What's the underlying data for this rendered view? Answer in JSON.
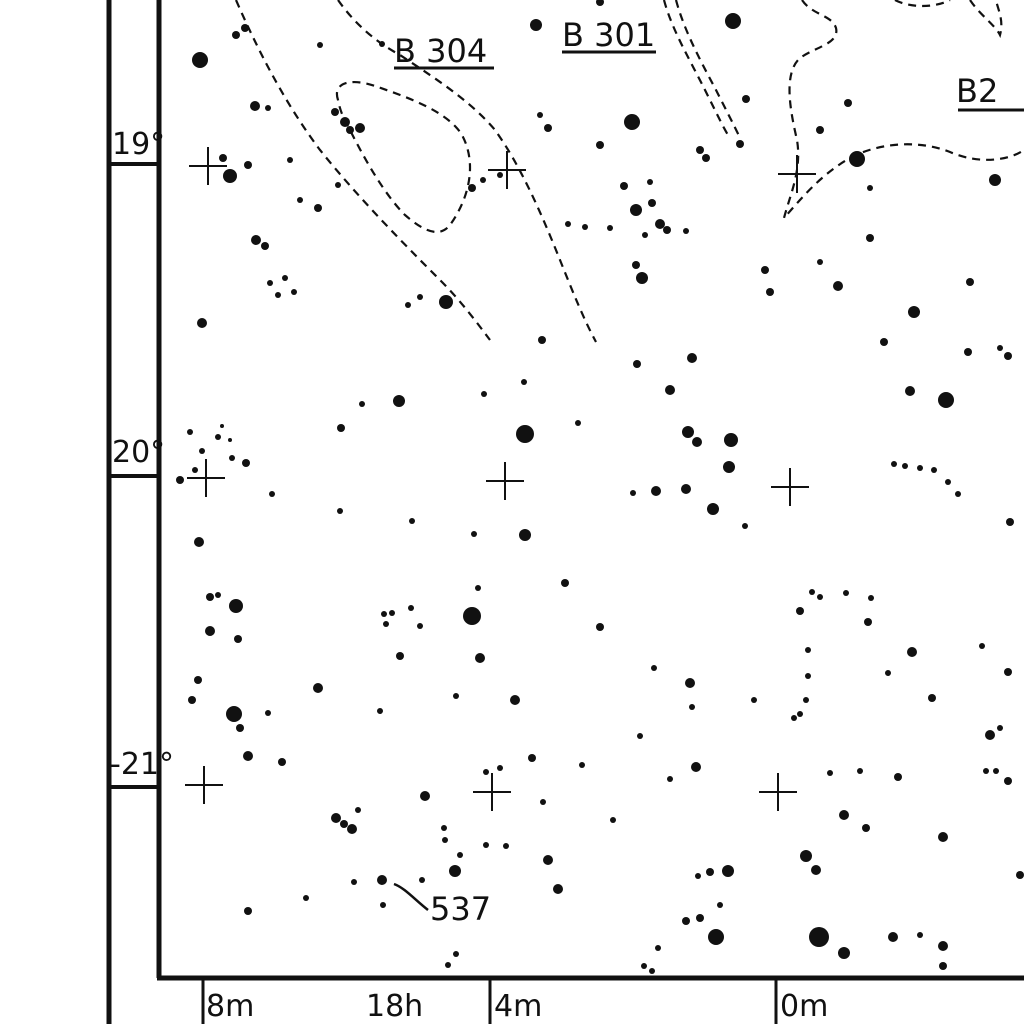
{
  "atlas": {
    "ink_color": "#111111",
    "paper_color": "#ffffff",
    "declination_labels": [
      {
        "text": "19°",
        "value": 19
      },
      {
        "text": "20°",
        "value": 20
      },
      {
        "text": "-21°",
        "value": -21
      }
    ],
    "ra_labels": [
      "8m",
      "18h",
      "4m",
      "0m"
    ],
    "dark_nebulae": [
      "B 304",
      "B 301",
      "B2"
    ],
    "objects": [
      {
        "label": "537",
        "kind": "star-cluster"
      }
    ],
    "grid": true,
    "magnitude_symbols": "filled-dots"
  }
}
